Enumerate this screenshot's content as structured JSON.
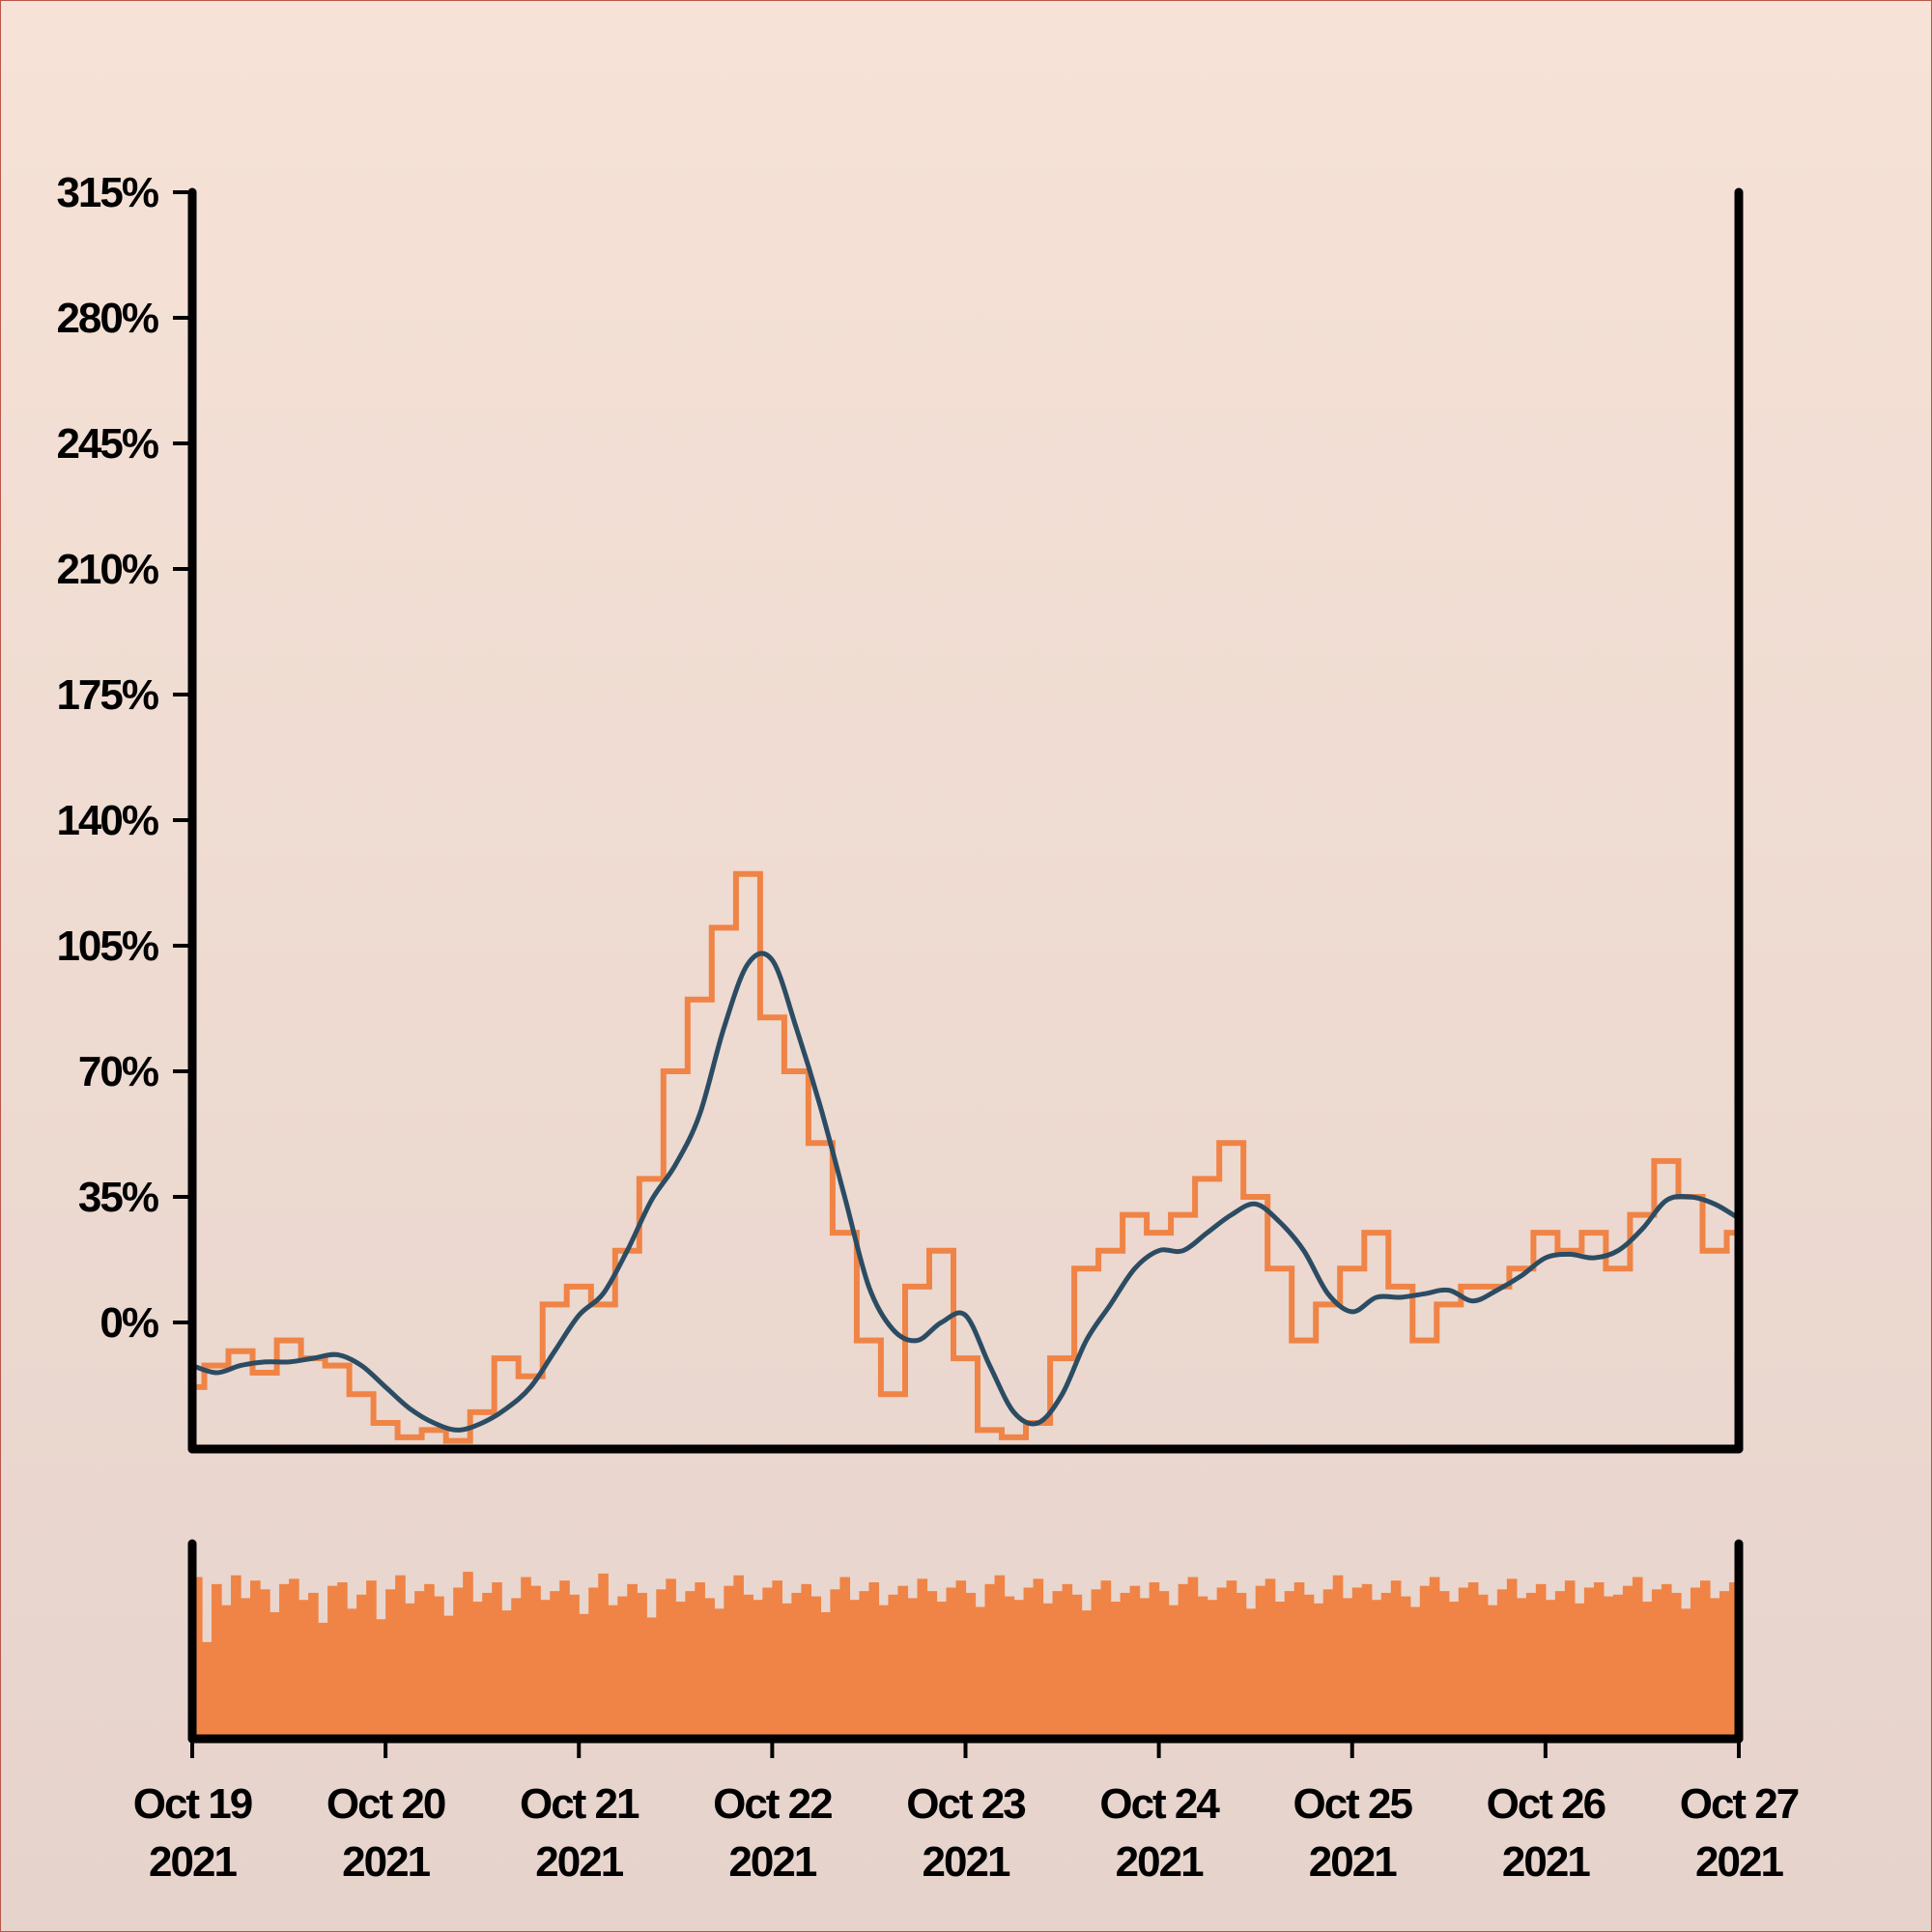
{
  "chart_data": {
    "type": "line",
    "title": "",
    "xlabel": "",
    "ylabel": "",
    "x_ticks": [
      {
        "date": "2021-10-19",
        "line1": "Oct 19",
        "line2": "2021"
      },
      {
        "date": "2021-10-20",
        "line1": "Oct 20",
        "line2": "2021"
      },
      {
        "date": "2021-10-21",
        "line1": "Oct 21",
        "line2": "2021"
      },
      {
        "date": "2021-10-22",
        "line1": "Oct 22",
        "line2": "2021"
      },
      {
        "date": "2021-10-23",
        "line1": "Oct 23",
        "line2": "2021"
      },
      {
        "date": "2021-10-24",
        "line1": "Oct 24",
        "line2": "2021"
      },
      {
        "date": "2021-10-25",
        "line1": "Oct 25",
        "line2": "2021"
      },
      {
        "date": "2021-10-26",
        "line1": "Oct 26",
        "line2": "2021"
      },
      {
        "date": "2021-10-27",
        "line1": "Oct 27",
        "line2": "2021"
      }
    ],
    "y_ticks": [
      "0%",
      "35%",
      "70%",
      "105%",
      "140%",
      "175%",
      "210%",
      "245%",
      "280%",
      "315%"
    ],
    "y_tick_values": [
      0,
      35,
      70,
      105,
      140,
      175,
      210,
      245,
      280,
      315
    ],
    "xlim": [
      "2021-10-19",
      "2021-10-27"
    ],
    "ylim": [
      -35,
      315
    ],
    "grid": false,
    "legend": "none",
    "colors": {
      "raw": "#ef8446",
      "smoothed": "#2b4c63",
      "volume": "#ef8446"
    },
    "series": [
      {
        "key": "raw",
        "style": "stepped-line",
        "x": [
          "2021-10-19 00:00",
          "2021-10-19 03:00",
          "2021-10-19 06:00",
          "2021-10-19 09:00",
          "2021-10-19 12:00",
          "2021-10-19 15:00",
          "2021-10-19 18:00",
          "2021-10-19 21:00",
          "2021-10-20 00:00",
          "2021-10-20 03:00",
          "2021-10-20 06:00",
          "2021-10-20 09:00",
          "2021-10-20 12:00",
          "2021-10-20 15:00",
          "2021-10-20 18:00",
          "2021-10-20 21:00",
          "2021-10-21 00:00",
          "2021-10-21 03:00",
          "2021-10-21 06:00",
          "2021-10-21 09:00",
          "2021-10-21 12:00",
          "2021-10-21 15:00",
          "2021-10-21 18:00",
          "2021-10-21 21:00",
          "2021-10-22 00:00",
          "2021-10-22 03:00",
          "2021-10-22 06:00",
          "2021-10-22 09:00",
          "2021-10-22 12:00",
          "2021-10-22 15:00",
          "2021-10-22 18:00",
          "2021-10-22 21:00",
          "2021-10-23 00:00",
          "2021-10-23 03:00",
          "2021-10-23 06:00",
          "2021-10-23 09:00",
          "2021-10-23 12:00",
          "2021-10-23 15:00",
          "2021-10-23 18:00",
          "2021-10-23 21:00",
          "2021-10-24 00:00",
          "2021-10-24 03:00",
          "2021-10-24 06:00",
          "2021-10-24 09:00",
          "2021-10-24 12:00",
          "2021-10-24 15:00",
          "2021-10-24 18:00",
          "2021-10-24 21:00",
          "2021-10-25 00:00",
          "2021-10-25 03:00",
          "2021-10-25 06:00",
          "2021-10-25 09:00",
          "2021-10-25 12:00",
          "2021-10-25 15:00",
          "2021-10-25 18:00",
          "2021-10-25 21:00",
          "2021-10-26 00:00",
          "2021-10-26 03:00",
          "2021-10-26 06:00",
          "2021-10-26 09:00",
          "2021-10-26 12:00",
          "2021-10-26 15:00",
          "2021-10-26 18:00",
          "2021-10-26 21:00",
          "2021-10-27 00:00"
        ],
        "y": [
          -18,
          -12,
          -8,
          -14,
          -5,
          -10,
          -12,
          -20,
          -28,
          -32,
          -30,
          -33,
          -25,
          -10,
          -15,
          5,
          10,
          5,
          20,
          40,
          70,
          90,
          110,
          125,
          85,
          70,
          50,
          25,
          -5,
          -20,
          10,
          20,
          -10,
          -30,
          -32,
          -28,
          -10,
          15,
          20,
          30,
          25,
          30,
          40,
          50,
          35,
          15,
          -5,
          5,
          15,
          25,
          10,
          -5,
          5,
          10,
          10,
          15,
          25,
          20,
          25,
          15,
          30,
          45,
          35,
          20,
          25
        ]
      },
      {
        "key": "smoothed",
        "style": "line",
        "x": [
          "2021-10-19 00:00",
          "2021-10-19 03:00",
          "2021-10-19 06:00",
          "2021-10-19 09:00",
          "2021-10-19 12:00",
          "2021-10-19 15:00",
          "2021-10-19 18:00",
          "2021-10-19 21:00",
          "2021-10-20 00:00",
          "2021-10-20 03:00",
          "2021-10-20 06:00",
          "2021-10-20 09:00",
          "2021-10-20 12:00",
          "2021-10-20 15:00",
          "2021-10-20 18:00",
          "2021-10-20 21:00",
          "2021-10-21 00:00",
          "2021-10-21 03:00",
          "2021-10-21 06:00",
          "2021-10-21 09:00",
          "2021-10-21 12:00",
          "2021-10-21 15:00",
          "2021-10-21 18:00",
          "2021-10-21 21:00",
          "2021-10-22 00:00",
          "2021-10-22 03:00",
          "2021-10-22 06:00",
          "2021-10-22 09:00",
          "2021-10-22 12:00",
          "2021-10-22 15:00",
          "2021-10-22 18:00",
          "2021-10-22 21:00",
          "2021-10-23 00:00",
          "2021-10-23 03:00",
          "2021-10-23 06:00",
          "2021-10-23 09:00",
          "2021-10-23 12:00",
          "2021-10-23 15:00",
          "2021-10-23 18:00",
          "2021-10-23 21:00",
          "2021-10-24 00:00",
          "2021-10-24 03:00",
          "2021-10-24 06:00",
          "2021-10-24 09:00",
          "2021-10-24 12:00",
          "2021-10-24 15:00",
          "2021-10-24 18:00",
          "2021-10-24 21:00",
          "2021-10-25 00:00",
          "2021-10-25 03:00",
          "2021-10-25 06:00",
          "2021-10-25 09:00",
          "2021-10-25 12:00",
          "2021-10-25 15:00",
          "2021-10-25 18:00",
          "2021-10-25 21:00",
          "2021-10-26 00:00",
          "2021-10-26 03:00",
          "2021-10-26 06:00",
          "2021-10-26 09:00",
          "2021-10-26 12:00",
          "2021-10-26 15:00",
          "2021-10-26 18:00",
          "2021-10-26 21:00",
          "2021-10-27 00:00"
        ],
        "y": [
          -12,
          -14,
          -12,
          -11,
          -11,
          -10,
          -9,
          -12,
          -18,
          -24,
          -28,
          -30,
          -28,
          -24,
          -18,
          -8,
          2,
          8,
          20,
          34,
          44,
          58,
          82,
          100,
          101,
          82,
          60,
          35,
          10,
          -2,
          -5,
          0,
          2,
          -12,
          -25,
          -28,
          -20,
          -5,
          5,
          15,
          20,
          20,
          25,
          30,
          33,
          28,
          20,
          8,
          3,
          7,
          7,
          8,
          9,
          6,
          9,
          13,
          18,
          19,
          18,
          20,
          26,
          34,
          35,
          33,
          29
        ]
      }
    ],
    "volume": {
      "style": "bars",
      "ylim": [
        0,
        1
      ],
      "values": [
        0.92,
        0.55,
        0.88,
        0.76,
        0.93,
        0.8,
        0.9,
        0.85,
        0.72,
        0.88,
        0.91,
        0.79,
        0.83,
        0.66,
        0.87,
        0.89,
        0.74,
        0.82,
        0.9,
        0.68,
        0.85,
        0.93,
        0.77,
        0.84,
        0.88,
        0.81,
        0.7,
        0.86,
        0.95,
        0.78,
        0.83,
        0.89,
        0.73,
        0.8,
        0.92,
        0.87,
        0.79,
        0.84,
        0.9,
        0.82,
        0.71,
        0.86,
        0.94,
        0.76,
        0.81,
        0.88,
        0.83,
        0.69,
        0.85,
        0.91,
        0.78,
        0.84,
        0.89,
        0.8,
        0.74,
        0.87,
        0.93,
        0.82,
        0.79,
        0.86,
        0.9,
        0.77,
        0.83,
        0.88,
        0.81,
        0.72,
        0.85,
        0.92,
        0.79,
        0.84,
        0.89,
        0.76,
        0.82,
        0.87,
        0.8,
        0.91,
        0.84,
        0.78,
        0.86,
        0.9,
        0.83,
        0.75,
        0.88,
        0.93,
        0.81,
        0.79,
        0.86,
        0.91,
        0.77,
        0.84,
        0.88,
        0.82,
        0.73,
        0.85,
        0.9,
        0.78,
        0.83,
        0.87,
        0.8,
        0.89,
        0.84,
        0.76,
        0.88,
        0.92,
        0.81,
        0.79,
        0.86,
        0.9,
        0.83,
        0.74,
        0.87,
        0.91,
        0.78,
        0.84,
        0.89,
        0.82,
        0.77,
        0.85,
        0.93,
        0.8,
        0.86,
        0.88,
        0.79,
        0.83,
        0.9,
        0.81,
        0.75,
        0.87,
        0.92,
        0.84,
        0.78,
        0.86,
        0.89,
        0.82,
        0.76,
        0.85,
        0.91,
        0.8,
        0.83,
        0.88,
        0.79,
        0.84,
        0.9,
        0.77,
        0.86,
        0.89,
        0.81,
        0.82,
        0.87,
        0.92,
        0.78,
        0.85,
        0.88,
        0.83,
        0.74,
        0.86,
        0.9,
        0.8,
        0.84,
        0.89
      ]
    }
  }
}
